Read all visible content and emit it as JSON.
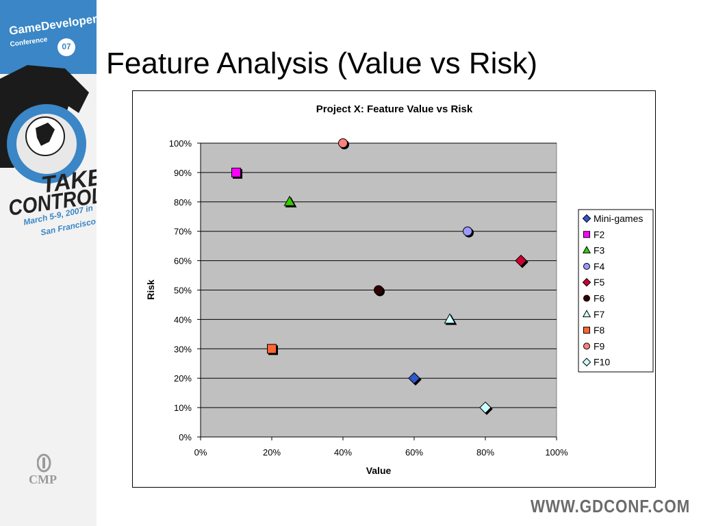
{
  "slide": {
    "title": "Feature Analysis (Value vs Risk)",
    "footer_url": "WWW.GDCONF.COM"
  },
  "sidebar": {
    "brand_line1": "GameDevelopers",
    "brand_line2": "Conference",
    "brand_year": "07",
    "tagline_1": "TAKE",
    "tagline_2": "CONTROL",
    "dates_1": "March 5-9, 2007 in",
    "dates_2": "San Francisco",
    "sponsor": "CMP"
  },
  "chart_data": {
    "type": "scatter",
    "title": "Project X: Feature Value vs Risk",
    "xlabel": "Value",
    "ylabel": "Risk",
    "xlim": [
      0,
      100
    ],
    "ylim": [
      0,
      100
    ],
    "x_ticks": [
      "0%",
      "20%",
      "40%",
      "60%",
      "80%",
      "100%"
    ],
    "y_ticks": [
      "0%",
      "10%",
      "20%",
      "30%",
      "40%",
      "50%",
      "60%",
      "70%",
      "80%",
      "90%",
      "100%"
    ],
    "grid": "horizontal",
    "plot_background": "#c0c0c0",
    "legend_position": "right",
    "series": [
      {
        "name": "Mini-games",
        "x": 60,
        "y": 20,
        "marker": "diamond",
        "color": "#3355cc"
      },
      {
        "name": "F2",
        "x": 10,
        "y": 90,
        "marker": "square",
        "color": "#ff00ff"
      },
      {
        "name": "F3",
        "x": 25,
        "y": 80,
        "marker": "triangle",
        "color": "#33cc00"
      },
      {
        "name": "F4",
        "x": 75,
        "y": 70,
        "marker": "circle",
        "color": "#9999ff"
      },
      {
        "name": "F5",
        "x": 90,
        "y": 60,
        "marker": "diamond",
        "color": "#cc0033"
      },
      {
        "name": "F6",
        "x": 50,
        "y": 50,
        "marker": "circle",
        "color": "#330000"
      },
      {
        "name": "F7",
        "x": 70,
        "y": 40,
        "marker": "triangle",
        "color": "#ccffff"
      },
      {
        "name": "F8",
        "x": 20,
        "y": 30,
        "marker": "square",
        "color": "#ff6633"
      },
      {
        "name": "F9",
        "x": 40,
        "y": 100,
        "marker": "circle",
        "color": "#ff8080"
      },
      {
        "name": "F10",
        "x": 80,
        "y": 10,
        "marker": "diamond",
        "color": "#ccffff"
      }
    ]
  }
}
